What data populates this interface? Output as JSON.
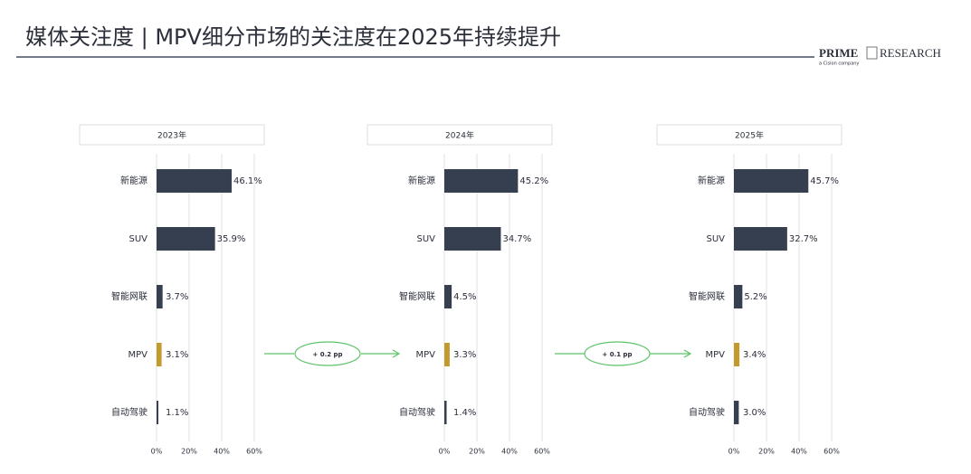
{
  "title": "媒体关注度 | MPV细分市场的关注度在2025年持续提升",
  "logo": {
    "name": "PRIME",
    "suffix": "RESEARCH",
    "tagline": "a Cision company"
  },
  "annotations": [
    "+ 0.2 pp",
    "+ 0.1 pp"
  ],
  "chart_data": [
    {
      "type": "bar",
      "orientation": "horizontal",
      "title": "2023年",
      "categories": [
        "新能源",
        "SUV",
        "智能网联",
        "MPV",
        "自动驾驶"
      ],
      "values": [
        46.1,
        35.9,
        3.7,
        3.1,
        1.1
      ],
      "value_labels": [
        "46.1%",
        "35.9%",
        "3.7%",
        "3.1%",
        "1.1%"
      ],
      "colors": [
        "#363f4f",
        "#363f4f",
        "#363f4f",
        "#c39a2c",
        "#363f4f"
      ],
      "xlim": [
        0,
        60
      ],
      "xticks": [
        {
          "value": 0,
          "label": "0%"
        },
        {
          "value": 20,
          "label": "20%"
        },
        {
          "value": 40,
          "label": "40%"
        },
        {
          "value": 60,
          "label": "60%"
        }
      ],
      "grid": true
    },
    {
      "type": "bar",
      "orientation": "horizontal",
      "title": "2024年",
      "categories": [
        "新能源",
        "SUV",
        "智能网联",
        "MPV",
        "自动驾驶"
      ],
      "values": [
        45.2,
        34.7,
        4.5,
        3.3,
        1.4
      ],
      "value_labels": [
        "45.2%",
        "34.7%",
        "4.5%",
        "3.3%",
        "1.4%"
      ],
      "colors": [
        "#363f4f",
        "#363f4f",
        "#363f4f",
        "#c39a2c",
        "#363f4f"
      ],
      "xlim": [
        0,
        60
      ],
      "xticks": [
        {
          "value": 0,
          "label": "0%"
        },
        {
          "value": 20,
          "label": "20%"
        },
        {
          "value": 40,
          "label": "40%"
        },
        {
          "value": 60,
          "label": "60%"
        }
      ],
      "grid": true
    },
    {
      "type": "bar",
      "orientation": "horizontal",
      "title": "2025年",
      "categories": [
        "新能源",
        "SUV",
        "智能网联",
        "MPV",
        "自动驾驶"
      ],
      "values": [
        45.7,
        32.7,
        5.2,
        3.4,
        3.0
      ],
      "value_labels": [
        "45.7%",
        "32.7%",
        "5.2%",
        "3.4%",
        "3.0%"
      ],
      "colors": [
        "#363f4f",
        "#363f4f",
        "#363f4f",
        "#c39a2c",
        "#363f4f"
      ],
      "xlim": [
        0,
        60
      ],
      "xticks": [
        {
          "value": 0,
          "label": "0%"
        },
        {
          "value": 20,
          "label": "20%"
        },
        {
          "value": 40,
          "label": "40%"
        },
        {
          "value": 60,
          "label": "60%"
        }
      ],
      "grid": true
    }
  ]
}
